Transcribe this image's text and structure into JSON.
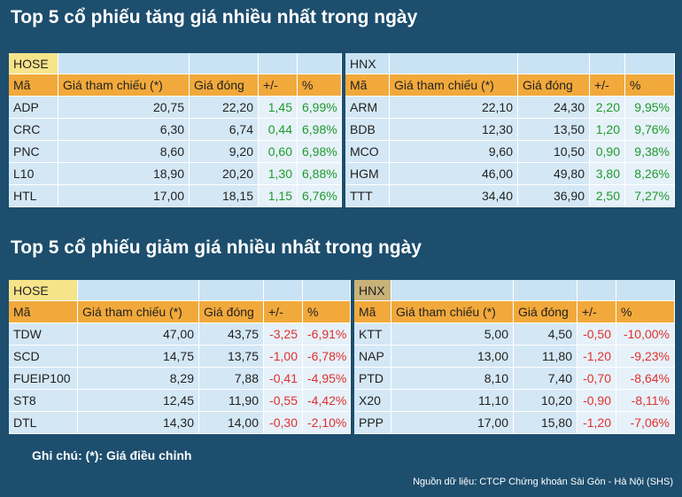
{
  "gainers": {
    "title": "Top 5 cổ phiếu tăng giá nhiều nhất trong ngày",
    "change_color": "#1e9a2c",
    "hose": {
      "exchange": "HOSE",
      "header": [
        "Mã",
        "Giá tham chiếu (*)",
        "Giá đóng",
        "+/-",
        "%"
      ],
      "rows": [
        [
          "ADP",
          "20,75",
          "22,20",
          "1,45",
          "6,99%"
        ],
        [
          "CRC",
          "6,30",
          "6,74",
          "0,44",
          "6,98%"
        ],
        [
          "PNC",
          "8,60",
          "9,20",
          "0,60",
          "6,98%"
        ],
        [
          "L10",
          "18,90",
          "20,20",
          "1,30",
          "6,88%"
        ],
        [
          "HTL",
          "17,00",
          "18,15",
          "1,15",
          "6,76%"
        ]
      ]
    },
    "hnx": {
      "exchange": "HNX",
      "header": [
        "Mã",
        "Giá tham chiếu (*)",
        "Giá đóng",
        "+/-",
        "%"
      ],
      "rows": [
        [
          "ARM",
          "22,10",
          "24,30",
          "2,20",
          "9,95%"
        ],
        [
          "BDB",
          "12,30",
          "13,50",
          "1,20",
          "9,76%"
        ],
        [
          "MCO",
          "9,60",
          "10,50",
          "0,90",
          "9,38%"
        ],
        [
          "HGM",
          "46,00",
          "49,80",
          "3,80",
          "8,26%"
        ],
        [
          "TTT",
          "34,40",
          "36,90",
          "2,50",
          "7,27%"
        ]
      ]
    }
  },
  "losers": {
    "title": "Top 5 cổ phiếu giảm giá nhiều nhất trong ngày",
    "change_color": "#e0302f",
    "hose": {
      "exchange": "HOSE",
      "header": [
        "Mã",
        "Giá tham chiếu (*)",
        "Giá đóng",
        "+/-",
        "%"
      ],
      "rows": [
        [
          "TDW",
          "47,00",
          "43,75",
          "-3,25",
          "-6,91%"
        ],
        [
          "SCD",
          "14,75",
          "13,75",
          "-1,00",
          "-6,78%"
        ],
        [
          "FUEIP100",
          "8,29",
          "7,88",
          "-0,41",
          "-4,95%"
        ],
        [
          "ST8",
          "12,45",
          "11,90",
          "-0,55",
          "-4,42%"
        ],
        [
          "DTL",
          "14,30",
          "14,00",
          "-0,30",
          "-2,10%"
        ]
      ]
    },
    "hnx": {
      "exchange": "HNX",
      "header": [
        "Mã",
        "Giá tham chiếu (*)",
        "Giá đóng",
        "+/-",
        "%"
      ],
      "rows": [
        [
          "KTT",
          "5,00",
          "4,50",
          "-0,50",
          "-10,00%"
        ],
        [
          "NAP",
          "13,00",
          "11,80",
          "-1,20",
          "-9,23%"
        ],
        [
          "PTD",
          "8,10",
          "7,40",
          "-0,70",
          "-8,64%"
        ],
        [
          "X20",
          "11,10",
          "10,20",
          "-0,90",
          "-8,11%"
        ],
        [
          "PPP",
          "17,00",
          "15,80",
          "-1,20",
          "-7,06%"
        ]
      ]
    }
  },
  "note": "Ghi chú: (*): Giá điều chỉnh",
  "source": "Nguồn dữ liệu: CTCP Chứng khoán Sài Gòn - Hà Nội (SHS)"
}
